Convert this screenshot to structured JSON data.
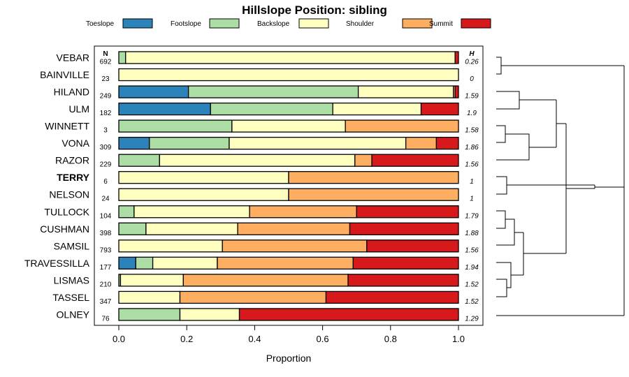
{
  "chart_data": {
    "type": "bar",
    "stacked": true,
    "orientation": "horizontal",
    "title": "Hillslope Position: sibling",
    "xlabel": "Proportion",
    "ylabel": "",
    "xlim": [
      0,
      1
    ],
    "xticks": [
      "0.0",
      "0.2",
      "0.4",
      "0.6",
      "0.8",
      "1.0"
    ],
    "n_header": "N",
    "h_header": "H",
    "highlight": "TERRY",
    "legend_position": "top",
    "series": [
      {
        "name": "Toeslope",
        "color": "#2b83ba"
      },
      {
        "name": "Footslope",
        "color": "#abdda4"
      },
      {
        "name": "Backslope",
        "color": "#ffffbf"
      },
      {
        "name": "Shoulder",
        "color": "#fdae61"
      },
      {
        "name": "Summit",
        "color": "#d7191c"
      }
    ],
    "rows": [
      {
        "name": "VEBAR",
        "n": "692",
        "h": "0.26",
        "values": [
          0.0,
          0.02,
          0.97,
          0.0,
          0.01
        ]
      },
      {
        "name": "BAINVILLE",
        "n": "23",
        "h": "0",
        "values": [
          0.0,
          0.0,
          1.0,
          0.0,
          0.0
        ]
      },
      {
        "name": "HILAND",
        "n": "249",
        "h": "1.59",
        "values": [
          0.205,
          0.5,
          0.28,
          0.005,
          0.01
        ]
      },
      {
        "name": "ULM",
        "n": "182",
        "h": "1.9",
        "values": [
          0.27,
          0.36,
          0.26,
          0.0,
          0.11
        ]
      },
      {
        "name": "WINNETT",
        "n": "3",
        "h": "1.58",
        "values": [
          0.0,
          0.333,
          0.334,
          0.333,
          0.0
        ]
      },
      {
        "name": "VONA",
        "n": "309",
        "h": "1.86",
        "values": [
          0.09,
          0.235,
          0.52,
          0.09,
          0.065
        ]
      },
      {
        "name": "RAZOR",
        "n": "229",
        "h": "1.56",
        "values": [
          0.0,
          0.12,
          0.575,
          0.05,
          0.255
        ]
      },
      {
        "name": "TERRY",
        "n": "6",
        "h": "1",
        "values": [
          0.0,
          0.0,
          0.5,
          0.5,
          0.0
        ]
      },
      {
        "name": "NELSON",
        "n": "24",
        "h": "1",
        "values": [
          0.0,
          0.0,
          0.5,
          0.5,
          0.0
        ]
      },
      {
        "name": "TULLOCK",
        "n": "104",
        "h": "1.79",
        "values": [
          0.0,
          0.045,
          0.34,
          0.315,
          0.3
        ]
      },
      {
        "name": "CUSHMAN",
        "n": "398",
        "h": "1.88",
        "values": [
          0.0,
          0.08,
          0.27,
          0.33,
          0.32
        ]
      },
      {
        "name": "SAMSIL",
        "n": "793",
        "h": "1.56",
        "values": [
          0.0,
          0.0,
          0.305,
          0.425,
          0.27
        ]
      },
      {
        "name": "TRAVESSILLA",
        "n": "177",
        "h": "1.94",
        "values": [
          0.05,
          0.05,
          0.19,
          0.4,
          0.31
        ]
      },
      {
        "name": "LISMAS",
        "n": "210",
        "h": "1.52",
        "values": [
          0.0,
          0.005,
          0.185,
          0.485,
          0.325
        ]
      },
      {
        "name": "TASSEL",
        "n": "347",
        "h": "1.52",
        "values": [
          0.0,
          0.0,
          0.18,
          0.43,
          0.39
        ]
      },
      {
        "name": "OLNEY",
        "n": "76",
        "h": "1.29",
        "values": [
          0.0,
          0.18,
          0.175,
          0.0,
          0.645
        ]
      }
    ]
  }
}
